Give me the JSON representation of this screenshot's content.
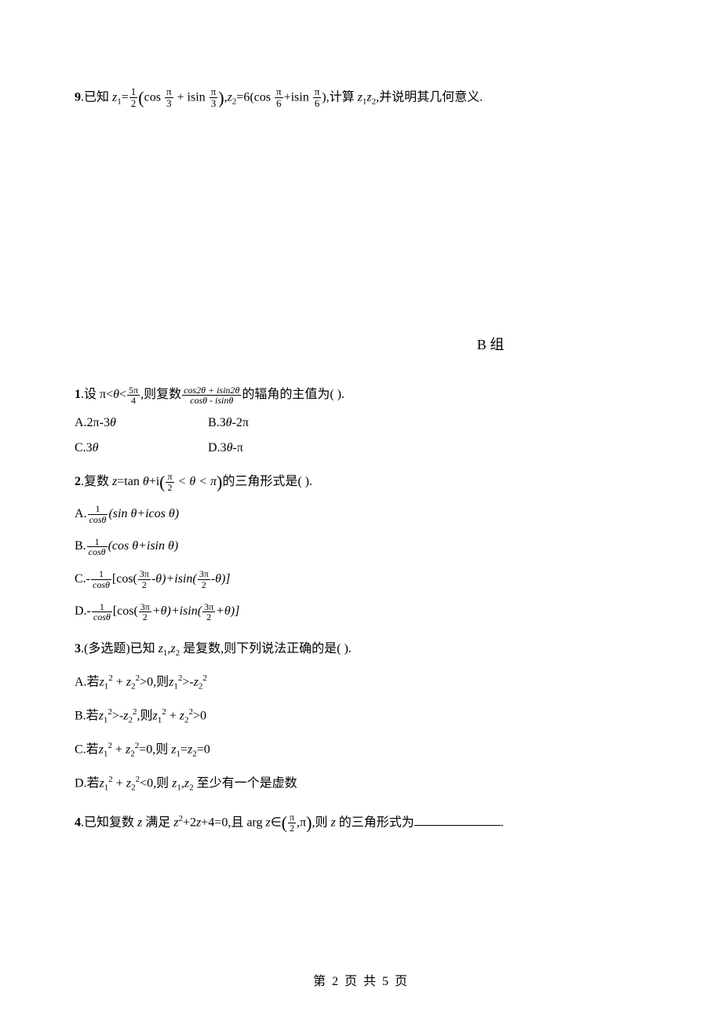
{
  "q9": {
    "num": "9",
    "prefix": ".已知 ",
    "z1": "z",
    "z1sub": "1",
    "eq1": "=",
    "half_num": "1",
    "half_den": "2",
    "lp": "(",
    "cos": "cos ",
    "pi3_num": "π",
    "pi3_den": "3",
    "plus": " + isin ",
    "rp": ")",
    "comma1": ",",
    "z2": "z",
    "z2sub": "2",
    "eq2": "=6(cos ",
    "pi6_num": "π",
    "pi6_den": "6",
    "plus2": "+isin ",
    "rp2": "),计算 ",
    "z1z2a": "z",
    "z1z2a_sub": "1",
    "z1z2b": "z",
    "z1z2b_sub": "2",
    "tail": ",并说明其几何意义."
  },
  "section_b": "B 组",
  "b1": {
    "num": "1",
    "text1": ".设 π<",
    "theta": "θ",
    "lt": "<",
    "f1_num": "5π",
    "f1_den": "4",
    "text2": ",则复数",
    "f2_num": "cos2θ + isin2θ",
    "f2_den": "cosθ - isinθ",
    "text3": "的辐角的主值为(       ).",
    "optA": "A.2π-3",
    "optA_theta": "θ",
    "optB": "B.3",
    "optB_theta": "θ",
    "optB_tail": "-2π",
    "optC": "C.3",
    "optC_theta": "θ",
    "optD": "D.3",
    "optD_theta": "θ",
    "optD_tail": "-π"
  },
  "b2": {
    "num": "2",
    "text1": ".复数 ",
    "z": "z",
    "eq": "=tan ",
    "theta": "θ",
    "plus": "+i",
    "lp": "(",
    "f_num": "π",
    "f_den": "2",
    "mid": " < θ < π",
    "rp": ")",
    "text2": "的三角形式是(       ).",
    "optA_pre": "A.",
    "optA_f_num": "1",
    "optA_f_den": "cosθ",
    "optA_tail": "(sin θ+icos θ)",
    "optB_pre": "B.",
    "optB_f_num": "1",
    "optB_f_den": "cosθ",
    "optB_tail": "(cos θ+isin θ)",
    "optC_pre": "C.-",
    "optC_f_num": "1",
    "optC_f_den": "cosθ",
    "optC_mid1": "[cos(",
    "optC_3pi2_num": "3π",
    "optC_3pi2_den": "2",
    "optC_mid2": "-θ)+isin(",
    "optC_mid3": "-θ)]",
    "optD_pre": "D.-",
    "optD_f_num": "1",
    "optD_f_den": "cosθ",
    "optD_mid1": "[cos(",
    "optD_3pi2_num": "3π",
    "optD_3pi2_den": "2",
    "optD_mid2": "+θ)+isin(",
    "optD_mid3": "+θ)]"
  },
  "b3": {
    "num": "3",
    "text1": ".(多选题)已知 ",
    "z1": "z",
    "s1": "1",
    "comma": ",",
    "z2": "z",
    "s2": "2",
    "text2": " 是复数,则下列说法正确的是(       ).",
    "optA": "A.若",
    "a_z1sq": "z",
    "a_plus": " + ",
    "a_gt": ">0,则",
    "a_neg": ">-",
    "optB": "B.若",
    "b_neg": ">-",
    "b_then": ",则",
    "b_gt": ">0",
    "optC": "C.若",
    "c_eq": "=0,则 ",
    "c_z1": "z",
    "c_eqz": "=",
    "c_z2": "z",
    "c_tail": "=0",
    "optD": "D.若",
    "d_lt": "<0,则 ",
    "d_z1": "z",
    "d_comma": ",",
    "d_z2": "z",
    "d_tail": " 至少有一个是虚数"
  },
  "b4": {
    "num": "4",
    "text1": ".已知复数 ",
    "z": "z",
    "text2": " 满足 ",
    "z2": "z",
    "sq": "2",
    "eq": "+2",
    "z3": "z",
    "tail1": "+4=0,且 arg ",
    "z4": "z",
    "in": "∈",
    "lp": "(",
    "f_num": "π",
    "f_den": "2",
    "comma": ",π",
    "rp": ")",
    "text3": ",则 ",
    "z5": "z",
    "text4": " 的三角形式为",
    "period": "."
  },
  "footer": "第 2 页 共 5 页"
}
